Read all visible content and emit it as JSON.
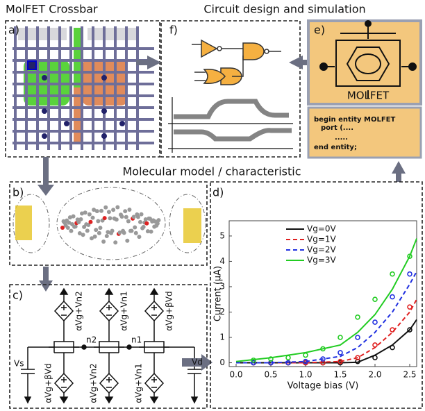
{
  "titles": {
    "crossbar": "MolFET Crossbar",
    "circuit": "Circuit design and simulation",
    "molecular": "Molecular model / characteristic"
  },
  "panel_labels": [
    "a)",
    "b)",
    "c)",
    "d)",
    "e)",
    "f)"
  ],
  "panel_e": {
    "device": "MOLFET",
    "code": [
      "begin entity  MOLFET",
      "port (....",
      ".....",
      "end entity;"
    ]
  },
  "panel_c": {
    "top_sources": [
      "αVg+Vn2",
      "αVg+Vn1",
      "αVg+βVd"
    ],
    "bottom_sources": [
      "αVg+βVd",
      "αVg+Vn2",
      "αVg+Vn1"
    ],
    "nodes": [
      "n2",
      "n1"
    ],
    "supplies": [
      "Vs",
      "Vd"
    ]
  },
  "chart_data": {
    "type": "line",
    "xlabel": "Voltage bias (V)",
    "ylabel": "Current (μA)",
    "xlim": [
      -0.1,
      2.6
    ],
    "ylim": [
      -0.15,
      5.6
    ],
    "xticks": [
      {
        "value": 0,
        "label": "0.0"
      },
      {
        "value": 0.5,
        "label": "0.5"
      },
      {
        "value": 1,
        "label": "1.0"
      },
      {
        "value": 1.5,
        "label": "1.5"
      },
      {
        "value": 2,
        "label": "2.0"
      },
      {
        "value": 2.5,
        "label": "2.5"
      }
    ],
    "yticks": [
      0,
      1,
      2,
      3,
      4,
      5
    ],
    "x": [
      0,
      0.5,
      1.0,
      1.5,
      1.75,
      2.0,
      2.25,
      2.5,
      2.6
    ],
    "points_x": [
      0.25,
      0.5,
      0.75,
      1.0,
      1.25,
      1.5,
      1.75,
      2.0,
      2.25,
      2.5
    ],
    "series": [
      {
        "name": "Vg=0V",
        "color": "#111111",
        "dashed": false,
        "values": [
          0,
          0,
          0,
          0,
          0.02,
          0.3,
          0.7,
          1.3,
          1.7
        ],
        "points": [
          0,
          0,
          0,
          0,
          0,
          0,
          0.05,
          0.2,
          0.6,
          1.3
        ]
      },
      {
        "name": "Vg=1V",
        "color": "#e02020",
        "dashed": true,
        "values": [
          0,
          0,
          0,
          0.05,
          0.2,
          0.6,
          1.2,
          2.0,
          2.5
        ],
        "points": [
          0,
          0,
          0,
          0,
          0,
          0.05,
          0.2,
          0.7,
          1.3,
          2.2
        ]
      },
      {
        "name": "Vg=2V",
        "color": "#2030e0",
        "dashed": true,
        "values": [
          0,
          0,
          0.05,
          0.25,
          0.6,
          1.2,
          2.0,
          3.1,
          3.6
        ],
        "points": [
          0,
          0,
          0,
          0.05,
          0.15,
          0.4,
          1.0,
          1.6,
          2.6,
          3.5
        ]
      },
      {
        "name": "Vg=3V",
        "color": "#22cc22",
        "dashed": false,
        "values": [
          0.05,
          0.2,
          0.4,
          0.7,
          1.2,
          1.9,
          2.9,
          4.2,
          4.9
        ],
        "points": [
          0.1,
          0.15,
          0.2,
          0.3,
          0.55,
          1.0,
          1.8,
          2.5,
          3.5,
          4.2
        ]
      }
    ]
  }
}
